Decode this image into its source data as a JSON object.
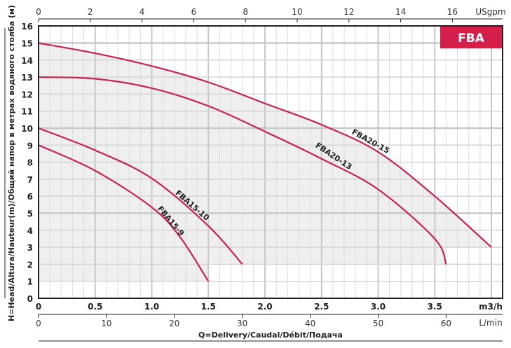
{
  "chart_data": {
    "type": "line",
    "badge": "FBA",
    "xlabel": "Q=Delivery/Caudal/Débit/Подача",
    "ylabel": "H=Head/Altura/Hauteur(m)/Общий напор в метрах водяного столба (м)",
    "x_unit": "m3/h",
    "xlim": [
      0,
      4.1
    ],
    "ylim": [
      0,
      16
    ],
    "grid": true,
    "y_ticks": [
      "0",
      "1",
      "2",
      "3",
      "4",
      "5",
      "6",
      "7",
      "8",
      "9",
      "10",
      "11",
      "12",
      "13",
      "14",
      "15",
      "16"
    ],
    "x_ticks_m3h": [
      "0",
      "0.5",
      "1.0",
      "1.5",
      "2.0",
      "2.5",
      "3.0",
      "3.5"
    ],
    "top_axis": {
      "unit": "USgpm",
      "ticks": [
        "0",
        "2",
        "4",
        "6",
        "8",
        "10",
        "12",
        "14",
        "16"
      ]
    },
    "bottom_axis_lmin": {
      "unit": "L/min",
      "ticks": [
        "0",
        "10",
        "20",
        "30",
        "40",
        "50",
        "60"
      ]
    },
    "curve_color": "#c8234f",
    "badge_color": "#d41f4a",
    "shade_color": "#efefef",
    "series": [
      {
        "name": "FBA20-15",
        "x": [
          0,
          0.5,
          1.0,
          1.5,
          2.0,
          2.5,
          3.0,
          3.5,
          4.0
        ],
        "y": [
          15,
          14.4,
          13.65,
          12.7,
          11.45,
          10.2,
          8.6,
          6.0,
          3.0
        ]
      },
      {
        "name": "FBA20-13",
        "x": [
          0,
          0.5,
          1.0,
          1.5,
          2.0,
          2.5,
          3.0,
          3.5,
          3.6
        ],
        "y": [
          13,
          12.9,
          12.35,
          11.3,
          9.8,
          8.2,
          6.4,
          3.5,
          2.0
        ]
      },
      {
        "name": "FBA15-10",
        "x": [
          0,
          0.5,
          1.0,
          1.5,
          1.8
        ],
        "y": [
          10,
          8.7,
          7.05,
          4.25,
          2.0
        ]
      },
      {
        "name": "FBA15-9",
        "x": [
          0,
          0.5,
          1.0,
          1.25,
          1.5
        ],
        "y": [
          9,
          7.5,
          5.35,
          3.6,
          1.0
        ]
      }
    ]
  }
}
